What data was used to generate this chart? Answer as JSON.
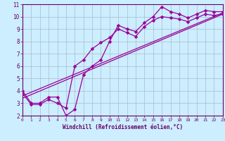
{
  "title": "",
  "xlabel": "Windchill (Refroidissement éolien,°C)",
  "bg_color": "#cceeff",
  "line_color": "#990099",
  "grid_color": "#aabbcc",
  "axis_color": "#660066",
  "spine_color": "#660066",
  "xlim": [
    0,
    23
  ],
  "ylim": [
    2,
    11
  ],
  "yticks": [
    2,
    3,
    4,
    5,
    6,
    7,
    8,
    9,
    10,
    11
  ],
  "xticks": [
    0,
    1,
    2,
    3,
    4,
    5,
    6,
    7,
    8,
    9,
    10,
    11,
    12,
    13,
    14,
    15,
    16,
    17,
    18,
    19,
    20,
    21,
    22,
    23
  ],
  "line1_x": [
    0,
    1,
    2,
    3,
    4,
    5,
    6,
    7,
    8,
    9,
    10,
    11,
    12,
    13,
    14,
    15,
    16,
    17,
    18,
    19,
    20,
    21,
    22,
    23
  ],
  "line1_y": [
    4.0,
    3.0,
    3.0,
    3.5,
    3.5,
    2.0,
    2.5,
    5.3,
    6.0,
    6.5,
    8.0,
    9.3,
    9.0,
    8.8,
    9.5,
    10.0,
    10.8,
    10.4,
    10.2,
    9.9,
    10.2,
    10.5,
    10.4,
    10.4
  ],
  "line2_x": [
    0,
    1,
    2,
    3,
    4,
    5,
    6,
    7,
    8,
    9,
    10,
    11,
    12,
    13,
    14,
    15,
    16,
    17,
    18,
    19,
    20,
    21,
    22,
    23
  ],
  "line2_y": [
    3.8,
    2.9,
    2.9,
    3.3,
    3.0,
    2.6,
    6.0,
    6.5,
    7.4,
    7.9,
    8.3,
    9.0,
    8.7,
    8.4,
    9.2,
    9.7,
    10.0,
    9.9,
    9.8,
    9.6,
    9.9,
    10.2,
    10.1,
    10.2
  ],
  "line3_x": [
    0,
    23
  ],
  "line3_y": [
    3.6,
    10.3
  ],
  "line4_x": [
    0,
    23
  ],
  "line4_y": [
    3.4,
    10.2
  ]
}
